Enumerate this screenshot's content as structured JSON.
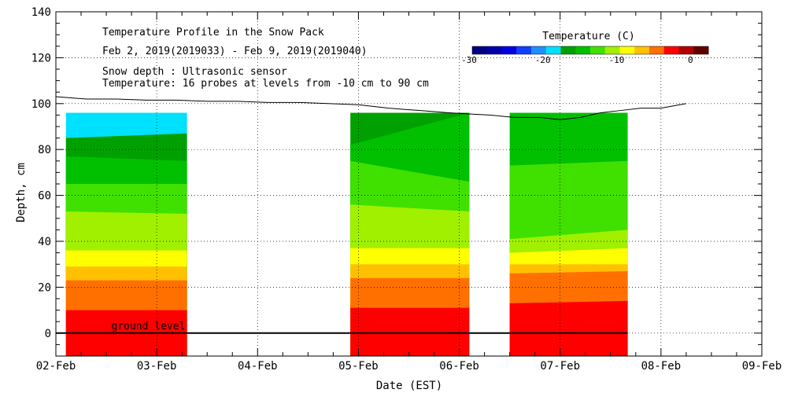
{
  "chart_data": {
    "type": "heatmap",
    "title": "Temperature Profile in the Snow Pack",
    "subtitle": "Feb  2, 2019(2019033) - Feb  9, 2019(2019040)",
    "notes": [
      "Snow depth : Ultrasonic sensor",
      "Temperature: 16 probes at levels from -10 cm to 90 cm"
    ],
    "xlabel": "Date (EST)",
    "ylabel": "Depth, cm",
    "x_ticks": [
      "02-Feb",
      "03-Feb",
      "04-Feb",
      "05-Feb",
      "06-Feb",
      "07-Feb",
      "08-Feb",
      "09-Feb"
    ],
    "xlim": [
      0,
      7
    ],
    "ylim": [
      -10,
      140
    ],
    "y_ticks": [
      0,
      20,
      40,
      60,
      80,
      100,
      120,
      140
    ],
    "grid": true,
    "ground_label": "ground level",
    "ground_level": 0,
    "colorbar": {
      "label": "Temperature (C)",
      "range": [
        -30,
        2
      ],
      "ticks": [
        -30,
        -20,
        -10,
        0
      ],
      "colors": [
        "#000080",
        "#0000a8",
        "#0000e0",
        "#1040ff",
        "#2090ff",
        "#00e0ff",
        "#00a000",
        "#00c000",
        "#40e000",
        "#a0f000",
        "#ffff00",
        "#ffc000",
        "#ff7000",
        "#ff0000",
        "#b00000",
        "#600000"
      ]
    },
    "temperature_data": {
      "depth_top": 96,
      "blocks": [
        {
          "x_range": [
            0.1,
            1.3
          ],
          "layers": [
            {
              "top": [
                96,
                96
              ],
              "color": "#00e0ff"
            },
            {
              "top": [
                85,
                87
              ],
              "color": "#00a000"
            },
            {
              "top": [
                77,
                75
              ],
              "color": "#00c000"
            },
            {
              "top": [
                65,
                65
              ],
              "color": "#40e000"
            },
            {
              "top": [
                53,
                52
              ],
              "color": "#a0f000"
            },
            {
              "top": [
                36,
                36
              ],
              "color": "#ffff00"
            },
            {
              "top": [
                29,
                29
              ],
              "color": "#ffc000"
            },
            {
              "top": [
                23,
                23
              ],
              "color": "#ff7000"
            },
            {
              "top": [
                10,
                10
              ],
              "color": "#ff0000"
            }
          ]
        },
        {
          "x_range": [
            2.92,
            4.1
          ],
          "layers": [
            {
              "top": [
                96,
                96
              ],
              "color": "#00a000"
            },
            {
              "top": [
                82,
                96
              ],
              "color": "#00c000"
            },
            {
              "top": [
                75,
                66
              ],
              "color": "#40e000"
            },
            {
              "top": [
                56,
                53
              ],
              "color": "#a0f000"
            },
            {
              "top": [
                37,
                37
              ],
              "color": "#ffff00"
            },
            {
              "top": [
                30,
                30
              ],
              "color": "#ffc000"
            },
            {
              "top": [
                24,
                24
              ],
              "color": "#ff7000"
            },
            {
              "top": [
                11,
                11
              ],
              "color": "#ff0000"
            }
          ]
        },
        {
          "x_range": [
            4.5,
            5.67
          ],
          "layers": [
            {
              "top": [
                96,
                96
              ],
              "color": "#00c000"
            },
            {
              "top": [
                73,
                75
              ],
              "color": "#40e000"
            },
            {
              "top": [
                41,
                45
              ],
              "color": "#a0f000"
            },
            {
              "top": [
                35,
                37
              ],
              "color": "#ffff00"
            },
            {
              "top": [
                30,
                30
              ],
              "color": "#ffc000"
            },
            {
              "top": [
                26,
                27
              ],
              "color": "#ff7000"
            },
            {
              "top": [
                13,
                14
              ],
              "color": "#ff0000"
            }
          ]
        }
      ]
    },
    "snow_depth_series": {
      "x": [
        0,
        0.3,
        0.6,
        0.9,
        1.2,
        1.5,
        1.8,
        2.1,
        2.4,
        2.7,
        3.0,
        3.3,
        3.6,
        3.9,
        4.1,
        4.3,
        4.55,
        4.8,
        5.0,
        5.2,
        5.4,
        5.6,
        5.8,
        6.0,
        6.25
      ],
      "y": [
        103,
        102,
        102,
        101.5,
        101.5,
        101,
        101,
        100.5,
        100.5,
        100,
        99.5,
        98,
        97,
        96,
        95.5,
        95,
        94,
        94,
        93,
        94,
        96,
        97,
        98,
        98,
        100
      ]
    }
  }
}
